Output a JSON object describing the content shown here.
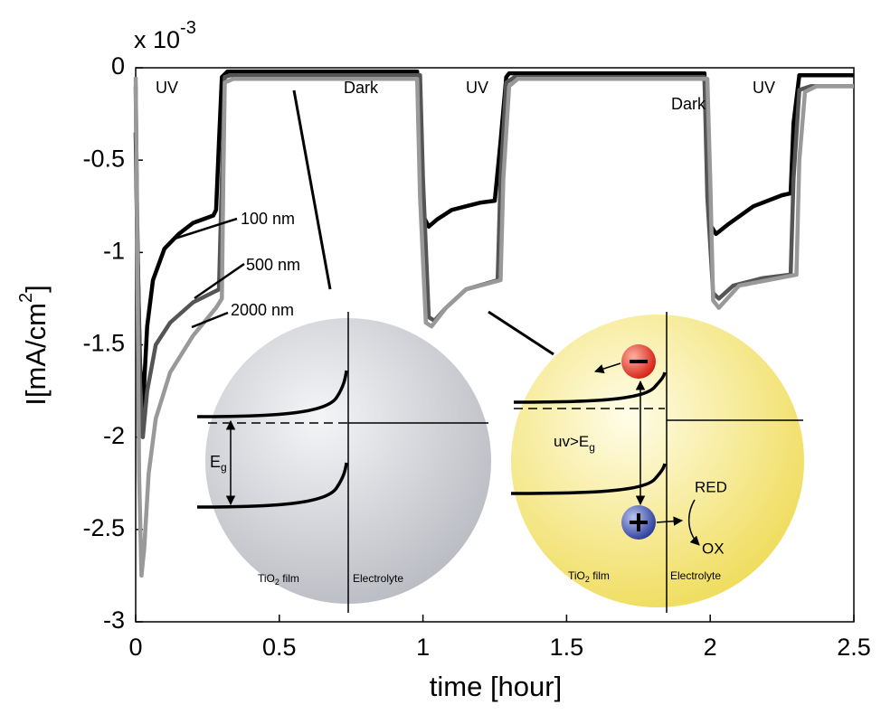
{
  "chart_data": {
    "type": "line",
    "xlabel": "time [hour]",
    "ylabel": [
      "I[mA/cm",
      "2",
      "]"
    ],
    "y_multiplier": [
      "x 10",
      "-3"
    ],
    "xlim": [
      0,
      2.5
    ],
    "ylim": [
      -3,
      0
    ],
    "xticks": [
      0,
      0.5,
      1,
      1.5,
      2,
      2.5
    ],
    "yticks": [
      0,
      -0.5,
      -1,
      -1.5,
      -2,
      -2.5,
      -3
    ],
    "annotations": [
      "UV",
      "Dark",
      "UV",
      "Dark",
      "UV"
    ],
    "series": [
      {
        "name": "100 nm",
        "color": "#000000",
        "x": [
          0,
          0.005,
          0.015,
          0.025,
          0.04,
          0.06,
          0.1,
          0.15,
          0.2,
          0.27,
          0.28,
          0.29,
          0.3,
          0.32,
          0.98,
          0.99,
          1.0,
          1.02,
          1.05,
          1.1,
          1.2,
          1.25,
          1.27,
          1.29,
          1.3,
          1.98,
          1.99,
          2.0,
          2.02,
          2.06,
          2.15,
          2.25,
          2.28,
          2.29,
          2.31,
          2.5
        ],
        "values": [
          -0.35,
          -0.9,
          -1.6,
          -1.85,
          -1.4,
          -1.15,
          -0.98,
          -0.9,
          -0.84,
          -0.8,
          -0.77,
          -0.4,
          -0.05,
          -0.02,
          -0.02,
          -0.4,
          -0.8,
          -0.86,
          -0.82,
          -0.77,
          -0.73,
          -0.72,
          -0.4,
          -0.05,
          -0.03,
          -0.03,
          -0.5,
          -0.85,
          -0.9,
          -0.85,
          -0.75,
          -0.69,
          -0.68,
          -0.3,
          -0.04,
          -0.04
        ]
      },
      {
        "name": "500 nm",
        "color": "#555555",
        "x": [
          0,
          0.005,
          0.015,
          0.025,
          0.04,
          0.07,
          0.12,
          0.2,
          0.29,
          0.3,
          0.31,
          0.33,
          0.99,
          1.0,
          1.02,
          1.04,
          1.08,
          1.15,
          1.26,
          1.27,
          1.29,
          1.32,
          1.98,
          1.99,
          2.01,
          2.03,
          2.08,
          2.18,
          2.28,
          2.29,
          2.31,
          2.35,
          2.5
        ],
        "values": [
          -0.1,
          -0.8,
          -1.7,
          -2.0,
          -1.75,
          -1.5,
          -1.38,
          -1.27,
          -1.2,
          -0.6,
          -0.05,
          -0.04,
          -0.04,
          -0.6,
          -1.35,
          -1.37,
          -1.3,
          -1.2,
          -1.15,
          -0.6,
          -0.08,
          -0.05,
          -0.05,
          -0.7,
          -1.22,
          -1.25,
          -1.18,
          -1.14,
          -1.12,
          -0.6,
          -0.12,
          -0.1,
          -0.1
        ]
      },
      {
        "name": "2000 nm",
        "color": "#999999",
        "x": [
          0,
          0.005,
          0.012,
          0.02,
          0.03,
          0.045,
          0.07,
          0.12,
          0.2,
          0.28,
          0.3,
          0.305,
          0.31,
          0.34,
          0.98,
          0.99,
          1.01,
          1.03,
          1.08,
          1.15,
          1.27,
          1.28,
          1.3,
          1.33,
          1.99,
          2.0,
          2.01,
          2.03,
          2.1,
          2.2,
          2.3,
          2.31,
          2.33,
          2.37,
          2.5
        ],
        "values": [
          -0.05,
          -0.9,
          -2.2,
          -2.75,
          -2.6,
          -2.2,
          -1.9,
          -1.65,
          -1.45,
          -1.3,
          -1.25,
          -0.6,
          -0.08,
          -0.06,
          -0.06,
          -0.7,
          -1.38,
          -1.4,
          -1.3,
          -1.2,
          -1.15,
          -0.6,
          -0.1,
          -0.06,
          -0.06,
          -0.6,
          -1.26,
          -1.3,
          -1.18,
          -1.15,
          -1.12,
          -0.5,
          -0.13,
          -0.1,
          -0.1
        ]
      }
    ],
    "insets": [
      {
        "film_label": [
          "TiO",
          "2",
          " film"
        ],
        "electrolyte_label": "Electrolyte",
        "gap_label": [
          "E",
          "g"
        ]
      },
      {
        "film_label": [
          "TiO",
          "2",
          " film"
        ],
        "electrolyte_label": "Electrolyte",
        "gap_label": [
          "uv>E",
          "g"
        ],
        "reduced_label": "RED",
        "oxidized_label": "OX"
      }
    ]
  }
}
